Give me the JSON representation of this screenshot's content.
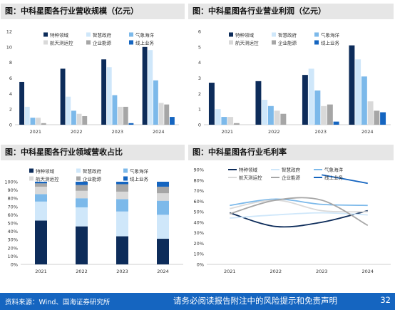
{
  "colors": {
    "特种领域": "#0d2c5a",
    "智慧政府": "#cfe7fa",
    "气象海洋": "#7cb9ea",
    "航天测运控": "#d9d9d9",
    "企业能源": "#a6a6a6",
    "线上业务": "#1565c0"
  },
  "chart_data": [
    {
      "id": "revenue",
      "type": "bar",
      "title": "图：中科星图各行业营收规模（亿元）",
      "categories": [
        "2021",
        "2022",
        "2023",
        "2024"
      ],
      "ylim": [
        0,
        12
      ],
      "yticks": [
        "0",
        "2",
        "4",
        "6",
        "8",
        "10",
        "12"
      ],
      "legend": [
        "特种领域",
        "智慧政府",
        "气象海洋",
        "航天测运控",
        "企业能源",
        "线上业务"
      ],
      "series": [
        {
          "name": "特种领域",
          "values": [
            5.5,
            7.2,
            8.4,
            10.0
          ]
        },
        {
          "name": "智慧政府",
          "values": [
            2.3,
            3.6,
            7.4,
            9.6
          ]
        },
        {
          "name": "气象海洋",
          "values": [
            0.9,
            1.8,
            3.8,
            5.7
          ]
        },
        {
          "name": "航天测运控",
          "values": [
            0.9,
            1.4,
            2.3,
            2.8
          ]
        },
        {
          "name": "企业能源",
          "values": [
            0.2,
            1.1,
            2.3,
            2.6
          ]
        },
        {
          "name": "线上业务",
          "values": [
            0.0,
            0.0,
            0.2,
            1.0
          ]
        }
      ]
    },
    {
      "id": "profit",
      "type": "bar",
      "title": "图：中科星图各行业营业利润（亿元）",
      "categories": [
        "2021",
        "2022",
        "2023",
        "2024"
      ],
      "ylim": [
        0,
        6
      ],
      "yticks": [
        "0",
        "1",
        "2",
        "3",
        "4",
        "5",
        "6"
      ],
      "legend": [
        "特种领域",
        "智慧政府",
        "气象海洋",
        "航天测运控",
        "企业能源",
        "线上业务"
      ],
      "series": [
        {
          "name": "特种领域",
          "values": [
            2.7,
            2.8,
            3.2,
            5.1
          ]
        },
        {
          "name": "智慧政府",
          "values": [
            1.0,
            1.6,
            3.6,
            4.2
          ]
        },
        {
          "name": "气象海洋",
          "values": [
            0.5,
            1.2,
            2.2,
            3.1
          ]
        },
        {
          "name": "航天测运控",
          "values": [
            0.5,
            0.9,
            1.2,
            1.5
          ]
        },
        {
          "name": "企业能源",
          "values": [
            0.1,
            0.7,
            1.3,
            0.9
          ]
        },
        {
          "name": "线上业务",
          "values": [
            0.0,
            0.0,
            0.2,
            0.8
          ]
        }
      ]
    },
    {
      "id": "share",
      "type": "bar",
      "stacked": true,
      "title": "图：中科星图各行业领域营收占比",
      "categories": [
        "2021",
        "2022",
        "2023",
        "2024"
      ],
      "ylim": [
        0,
        100
      ],
      "yticks": [
        "0%",
        "10%",
        "20%",
        "30%",
        "40%",
        "50%",
        "60%",
        "70%",
        "80%",
        "90%",
        "100%"
      ],
      "legend": [
        "特种领域",
        "智慧政府",
        "气象海洋",
        "航天测运控",
        "企业能源",
        "线上业务"
      ],
      "series": [
        {
          "name": "特种领域",
          "values": [
            53,
            46,
            34,
            31
          ]
        },
        {
          "name": "智慧政府",
          "values": [
            23,
            23,
            30,
            29
          ]
        },
        {
          "name": "气象海洋",
          "values": [
            9,
            11,
            15,
            17
          ]
        },
        {
          "name": "航天测运控",
          "values": [
            9,
            9,
            9,
            9
          ]
        },
        {
          "name": "企业能源",
          "values": [
            4,
            7,
            9,
            8
          ]
        },
        {
          "name": "线上业务",
          "values": [
            2,
            4,
            3,
            6
          ]
        }
      ]
    },
    {
      "id": "margin",
      "type": "line",
      "title": "图：中科星图各行业毛利率",
      "categories": [
        "2021",
        "2022",
        "2023",
        "2024"
      ],
      "ylim": [
        0,
        90
      ],
      "yticks": [
        "0%",
        "10%",
        "20%",
        "30%",
        "40%",
        "50%",
        "60%",
        "70%",
        "80%",
        "90%"
      ],
      "legend": [
        "特种领域",
        "智慧政府",
        "气象海洋",
        "航天测运控",
        "企业能源",
        "线上业务"
      ],
      "series": [
        {
          "name": "特种领域",
          "values": [
            49,
            36,
            40,
            51
          ]
        },
        {
          "name": "智慧政府",
          "values": [
            44,
            47,
            49,
            47
          ]
        },
        {
          "name": "气象海洋",
          "values": [
            56,
            62,
            57,
            56
          ]
        },
        {
          "name": "航天测运控",
          "values": [
            53,
            61,
            51,
            50
          ]
        },
        {
          "name": "企业能源",
          "values": [
            48,
            61,
            61,
            37
          ]
        },
        {
          "name": "线上业务",
          "values": [
            null,
            null,
            85,
            77
          ]
        }
      ]
    }
  ],
  "footer": {
    "source": "资料来源：Wind、国海证券研究所",
    "disclaimer": "请务必阅读报告附注中的风险提示和免责声明",
    "page": "32"
  }
}
